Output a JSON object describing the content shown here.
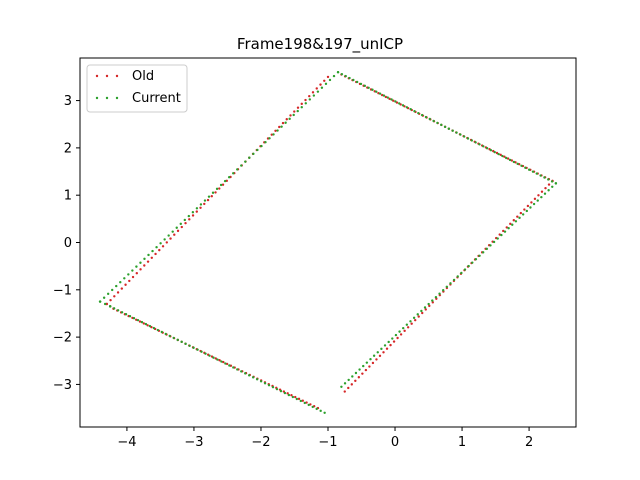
{
  "chart_data": {
    "type": "scatter",
    "title": "Frame198&197_unICP",
    "xlabel": "",
    "ylabel": "",
    "xlim": [
      -4.7,
      2.7
    ],
    "ylim": [
      -3.9,
      3.9
    ],
    "xticks": [
      -4,
      -3,
      -2,
      -1,
      0,
      1,
      2
    ],
    "yticks": [
      -3,
      -2,
      -1,
      0,
      1,
      2,
      3
    ],
    "grid": false,
    "legend_position": "top-left",
    "series": [
      {
        "name": "Old",
        "color": "#d62728",
        "marker": "dot",
        "segments": [
          {
            "start": [
              -1.0,
              3.5
            ],
            "end": [
              -4.3,
              -1.3
            ],
            "n": 60
          },
          {
            "start": [
              -4.3,
              -1.3
            ],
            "end": [
              -4.2,
              -1.4
            ],
            "n": 3
          },
          {
            "start": [
              -4.2,
              -1.4
            ],
            "end": [
              -1.15,
              -3.5
            ],
            "n": 55
          },
          {
            "start": [
              -0.75,
              -3.15
            ],
            "end": [
              2.35,
              1.3
            ],
            "n": 60
          },
          {
            "start": [
              2.35,
              1.3
            ],
            "end": [
              -0.8,
              3.55
            ],
            "n": 58
          }
        ]
      },
      {
        "name": "Current",
        "color": "#2ca02c",
        "marker": "dot",
        "segments": [
          {
            "start": [
              -0.85,
              3.6
            ],
            "end": [
              -4.4,
              -1.25
            ],
            "n": 60
          },
          {
            "start": [
              -4.4,
              -1.25
            ],
            "end": [
              -4.25,
              -1.35
            ],
            "n": 3
          },
          {
            "start": [
              -4.25,
              -1.35
            ],
            "end": [
              -1.05,
              -3.6
            ],
            "n": 55
          },
          {
            "start": [
              -0.8,
              -3.05
            ],
            "end": [
              2.4,
              1.25
            ],
            "n": 60
          },
          {
            "start": [
              2.4,
              1.25
            ],
            "end": [
              -0.85,
              3.6
            ],
            "n": 58
          }
        ]
      }
    ]
  }
}
